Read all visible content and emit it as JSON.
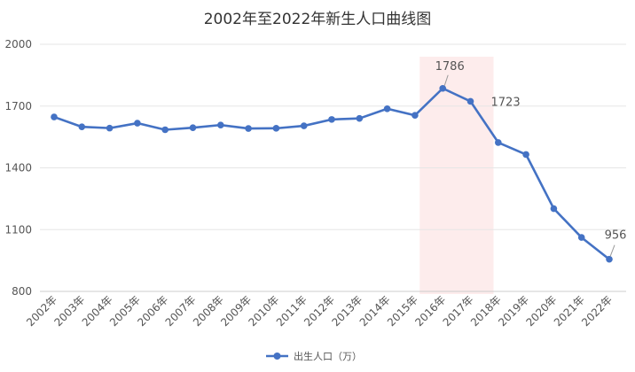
{
  "chart_data": {
    "type": "line",
    "title": "2002年至2022年新生人口曲线图",
    "categories": [
      "2002年",
      "2003年",
      "2004年",
      "2005年",
      "2006年",
      "2007年",
      "2008年",
      "2009年",
      "2010年",
      "2011年",
      "2012年",
      "2013年",
      "2014年",
      "2015年",
      "2016年",
      "2017年",
      "2018年",
      "2019年",
      "2020年",
      "2021年",
      "2022年"
    ],
    "series": [
      {
        "name": "出生人口（万）",
        "color": "#4472C4",
        "values": [
          1647,
          1599,
          1593,
          1617,
          1585,
          1595,
          1608,
          1591,
          1592,
          1604,
          1635,
          1640,
          1687,
          1655,
          1786,
          1723,
          1523,
          1465,
          1202,
          1062,
          956
        ]
      }
    ],
    "data_labels": [
      {
        "category": "2016年",
        "text": "1786"
      },
      {
        "category": "2017年",
        "text": "1723"
      },
      {
        "category": "2022年",
        "text": "956"
      }
    ],
    "highlight": {
      "from": "2016年",
      "to": "2017年",
      "color": "#FDECEC"
    },
    "y_ticks": [
      800,
      1100,
      1400,
      1700,
      2000
    ],
    "ylim": [
      800,
      2000
    ],
    "grid": true,
    "legend_position": "bottom-center"
  }
}
